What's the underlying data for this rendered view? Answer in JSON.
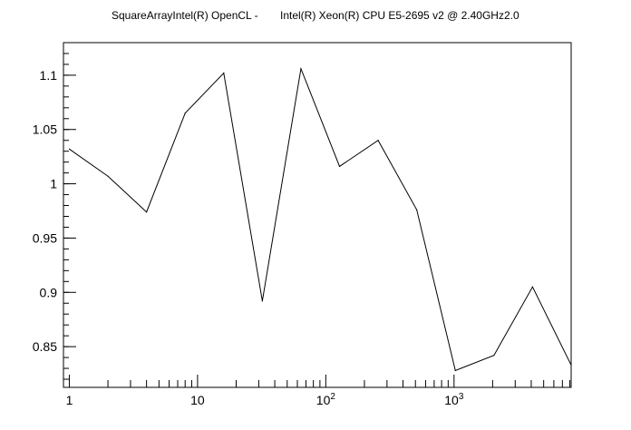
{
  "chart_data": {
    "type": "line",
    "title_part1": "SquareArrayIntel(R) OpenCL -",
    "title_part2": "Intel(R) Xeon(R) CPU E5-2695 v2 @ 2.40GHz2.0",
    "xlabel": "",
    "ylabel": "",
    "xscale": "log",
    "xlim": [
      0.9,
      8192
    ],
    "ylim": [
      0.8125,
      1.13
    ],
    "x": [
      1,
      2,
      4,
      8,
      16,
      32,
      64,
      128,
      256,
      512,
      1024,
      2048,
      4096,
      8192
    ],
    "y": [
      1.032,
      1.007,
      0.974,
      1.065,
      1.102,
      0.892,
      1.106,
      1.016,
      1.04,
      0.976,
      0.828,
      0.842,
      0.905,
      0.833
    ],
    "y_ticks": [
      {
        "value": 0.85,
        "label": "0.85"
      },
      {
        "value": 0.9,
        "label": "0.9"
      },
      {
        "value": 0.95,
        "label": "0.95"
      },
      {
        "value": 1.0,
        "label": "1"
      },
      {
        "value": 1.05,
        "label": "1.05"
      },
      {
        "value": 1.1,
        "label": "1.1"
      }
    ],
    "x_ticks": [
      {
        "value": 1,
        "base": "1",
        "exp": ""
      },
      {
        "value": 10,
        "base": "10",
        "exp": ""
      },
      {
        "value": 100,
        "base": "10",
        "exp": "2"
      },
      {
        "value": 1000,
        "base": "10",
        "exp": "3"
      }
    ],
    "grid": false,
    "line_color": "#000000"
  }
}
